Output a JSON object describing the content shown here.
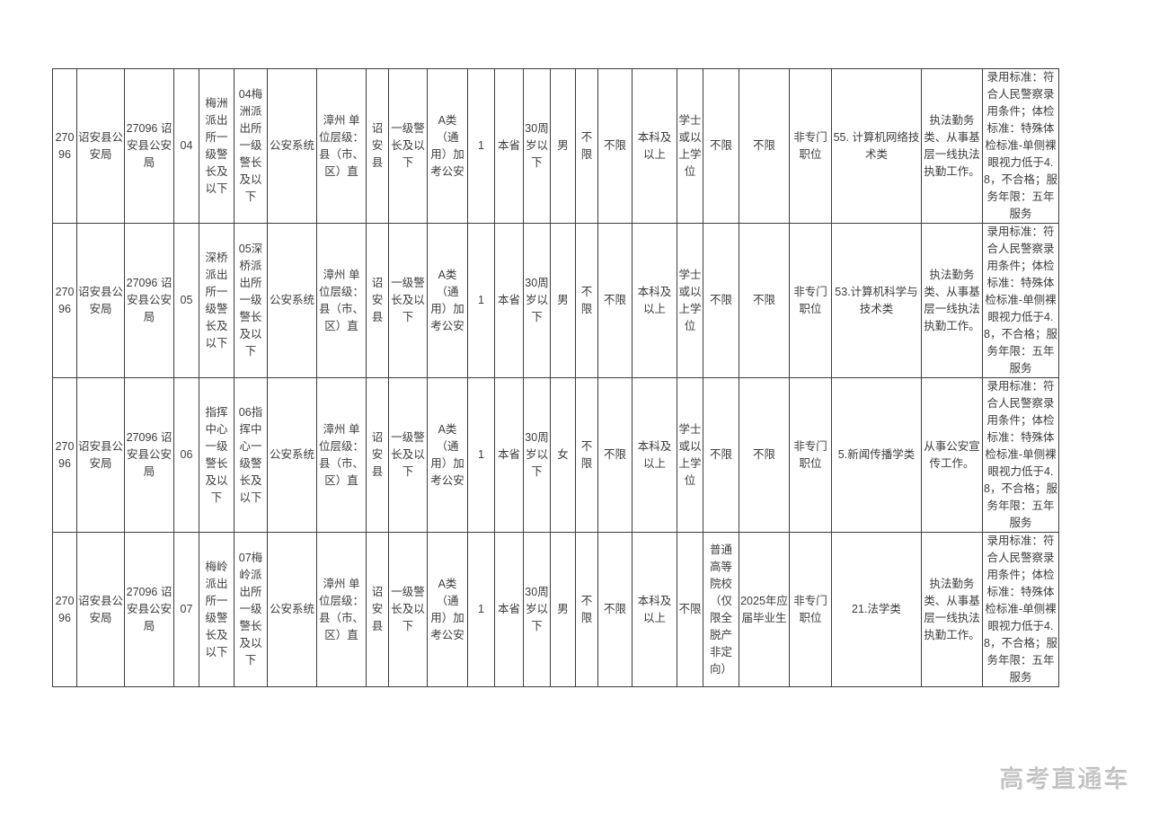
{
  "page": {
    "watermark": "高考直通车"
  },
  "table": {
    "rows": [
      {
        "cells": [
          "27096",
          "诏安县公安局",
          "27096 诏安县公安局",
          "04",
          "梅洲派出所一级警长及以下",
          "04梅洲派出所一级警长及以下",
          "公安系统",
          "漳州 单位层级：县（市、区）直",
          "诏安县",
          "一级警长及以下",
          "A类（通用）加考公安",
          "1",
          "本省",
          "30周岁以下",
          "男",
          "不限",
          "不限",
          "本科及以上",
          "学士或以上学位",
          "不限",
          "不限",
          "非专门职位",
          "55. 计算机网络技术类",
          "执法勤务类、从事基层一线执法执勤工作。",
          "录用标准：符合人民警察录用条件；体检标准：特殊体检标准-单侧裸眼视力低于4.8，不合格；服务年限：五年服务"
        ]
      },
      {
        "cells": [
          "27096",
          "诏安县公安局",
          "27096 诏安县公安局",
          "05",
          "深桥派出所一级警长及以下",
          "05深桥派出所一级警长及以下",
          "公安系统",
          "漳州 单位层级：县（市、区）直",
          "诏安县",
          "一级警长及以下",
          "A类（通用）加考公安",
          "1",
          "本省",
          "30周岁以下",
          "男",
          "不限",
          "不限",
          "本科及以上",
          "学士或以上学位",
          "不限",
          "不限",
          "非专门职位",
          "53.计算机科学与技术类",
          "执法勤务类、从事基层一线执法执勤工作。",
          "录用标准：符合人民警察录用条件；体检标准：特殊体检标准-单侧裸眼视力低于4.8，不合格；服务年限：五年服务"
        ]
      },
      {
        "cells": [
          "27096",
          "诏安县公安局",
          "27096 诏安县公安局",
          "06",
          "指挥中心一级警长及以下",
          "06指挥中心一级警长及以下",
          "公安系统",
          "漳州 单位层级：县（市、区）直",
          "诏安县",
          "一级警长及以下",
          "A类（通用）加考公安",
          "1",
          "本省",
          "30周岁以下",
          "女",
          "不限",
          "不限",
          "本科及以上",
          "学士或以上学位",
          "不限",
          "不限",
          "非专门职位",
          "5.新闻传播学类",
          "从事公安宣传工作。",
          "录用标准：符合人民警察录用条件；体检标准：特殊体检标准-单侧裸眼视力低于4.8，不合格；服务年限：五年服务"
        ]
      },
      {
        "cells": [
          "27096",
          "诏安县公安局",
          "27096 诏安县公安局",
          "07",
          "梅岭派出所一级警长及以下",
          "07梅岭派出所一级警长及以下",
          "公安系统",
          "漳州 单位层级：县（市、区）直",
          "诏安县",
          "一级警长及以下",
          "A类（通用）加考公安",
          "1",
          "本省",
          "30周岁以下",
          "男",
          "不限",
          "不限",
          "本科及以上",
          "不限",
          "普通高等院校（仅限全脱产非定向）",
          "2025年应届毕业生",
          "非专门职位",
          "21.法学类",
          "执法勤务类、从事基层一线执法执勤工作。",
          "录用标准：符合人民警察录用条件；体检标准：特殊体检标准-单侧裸眼视力低于4.8，不合格；服务年限：五年服务"
        ]
      }
    ]
  }
}
